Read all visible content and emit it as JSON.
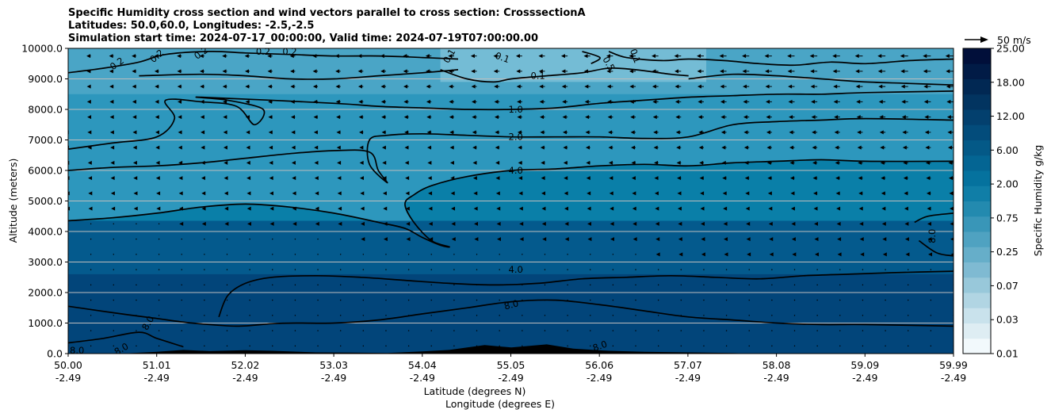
{
  "chart_data": {
    "type": "contour-cross-section",
    "title_lines": [
      "Specific Humidity cross section and wind vectors parallel to cross section: CrosssectionA",
      "Latitudes: 50.0,60.0, Longitudes: -2.5,-2.5",
      "Simulation start time: 2024-07-17_00:00:00, Valid time: 2024-07-19T07:00:00.00"
    ],
    "ylabel": "Altitude (meters)",
    "xlabel_lat": "Latitude (degrees N)",
    "xlabel_lon": "Longitude (degrees E)",
    "xlim": [
      50.0,
      59.99
    ],
    "ylim": [
      0,
      10000
    ],
    "grid": "horizontal",
    "y_ticks": [
      "0.0",
      "1000.0",
      "2000.0",
      "3000.0",
      "4000.0",
      "5000.0",
      "6000.0",
      "7000.0",
      "8000.0",
      "9000.0",
      "10000.0"
    ],
    "x_ticks_lat": [
      "50.00",
      "51.01",
      "52.02",
      "53.03",
      "54.04",
      "55.05",
      "56.06",
      "57.07",
      "58.08",
      "59.09",
      "59.99"
    ],
    "x_ticks_lon": [
      "-2.49",
      "-2.49",
      "-2.49",
      "-2.49",
      "-2.49",
      "-2.49",
      "-2.49",
      "-2.49",
      "-2.49",
      "-2.49",
      "-2.49"
    ],
    "colorbar": {
      "label": "Specific Humidity g/kg",
      "tick_labels": [
        "0.01",
        "0.03",
        "0.07",
        "0.25",
        "0.75",
        "2.00",
        "6.00",
        "12.00",
        "18.00",
        "25.00"
      ]
    },
    "quiver_key": "50 m/s",
    "contour_labels": [
      "0.2",
      "0.2",
      "0.2",
      "0.2",
      "0.2",
      "0.1",
      "0.1",
      "0.1",
      "0.1",
      "0.5",
      "1.0",
      "2.0",
      "4.0",
      "4.0",
      "8.0",
      "8.0",
      "8.0",
      "8.0",
      "8.0",
      "8.0"
    ],
    "contour_levels": [
      0.1,
      0.2,
      0.5,
      1.0,
      2.0,
      4.0,
      8.0
    ],
    "contours": [
      {
        "level": 8.0,
        "points": [
          [
            50.0,
            1550
          ],
          [
            50.6,
            1300
          ],
          [
            51.0,
            1150
          ],
          [
            51.4,
            1000
          ],
          [
            51.9,
            900
          ],
          [
            52.3,
            980
          ],
          [
            52.6,
            1000
          ],
          [
            53.0,
            1000
          ],
          [
            53.5,
            1100
          ],
          [
            54.0,
            1300
          ],
          [
            54.5,
            1500
          ],
          [
            55.0,
            1700
          ],
          [
            55.5,
            1750
          ],
          [
            56.0,
            1600
          ],
          [
            56.5,
            1400
          ],
          [
            57.0,
            1200
          ],
          [
            57.5,
            1100
          ],
          [
            58.0,
            1000
          ],
          [
            58.5,
            950
          ],
          [
            59.0,
            950
          ],
          [
            59.99,
            900
          ]
        ]
      },
      {
        "level": 8.0,
        "points": [
          [
            50.0,
            350
          ],
          [
            50.4,
            500
          ],
          [
            50.8,
            700
          ],
          [
            51.0,
            500
          ],
          [
            51.3,
            220
          ]
        ]
      },
      {
        "level": 4.0,
        "points": [
          [
            51.7,
            1200
          ],
          [
            51.8,
            1900
          ],
          [
            52.0,
            2300
          ],
          [
            52.3,
            2500
          ],
          [
            52.8,
            2550
          ],
          [
            53.3,
            2500
          ],
          [
            53.8,
            2400
          ],
          [
            54.3,
            2300
          ],
          [
            54.8,
            2250
          ],
          [
            55.3,
            2300
          ],
          [
            55.8,
            2450
          ],
          [
            56.3,
            2500
          ],
          [
            56.8,
            2550
          ],
          [
            57.3,
            2500
          ],
          [
            57.8,
            2450
          ],
          [
            58.3,
            2550
          ],
          [
            58.8,
            2600
          ],
          [
            59.3,
            2650
          ],
          [
            59.99,
            2700
          ]
        ]
      },
      {
        "level": 4.0,
        "points": [
          [
            59.55,
            4300
          ],
          [
            59.7,
            4500
          ],
          [
            59.99,
            4600
          ]
        ]
      },
      {
        "level": 4.0,
        "points": [
          [
            59.6,
            3700
          ],
          [
            59.8,
            3300
          ],
          [
            59.99,
            3200
          ]
        ]
      },
      {
        "level": 2.0,
        "points": [
          [
            50.0,
            4350
          ],
          [
            50.5,
            4450
          ],
          [
            51.0,
            4600
          ],
          [
            51.5,
            4800
          ],
          [
            52.0,
            4900
          ],
          [
            52.5,
            4800
          ],
          [
            53.0,
            4600
          ],
          [
            53.5,
            4300
          ],
          [
            53.8,
            4100
          ],
          [
            54.0,
            3800
          ],
          [
            54.2,
            3550
          ],
          [
            54.3,
            3500
          ],
          [
            54.1,
            3700
          ],
          [
            53.9,
            4300
          ],
          [
            53.8,
            4900
          ],
          [
            53.9,
            5200
          ],
          [
            54.1,
            5500
          ],
          [
            54.5,
            5800
          ],
          [
            55.0,
            6000
          ],
          [
            55.5,
            6050
          ],
          [
            56.0,
            6150
          ],
          [
            56.5,
            6200
          ],
          [
            57.0,
            6150
          ],
          [
            57.5,
            6250
          ],
          [
            58.0,
            6300
          ],
          [
            58.5,
            6350
          ],
          [
            59.0,
            6300
          ],
          [
            59.99,
            6300
          ]
        ]
      },
      {
        "level": 1.0,
        "points": [
          [
            50.0,
            6000
          ],
          [
            50.5,
            6100
          ],
          [
            51.0,
            6150
          ],
          [
            51.5,
            6250
          ],
          [
            52.0,
            6400
          ],
          [
            52.5,
            6550
          ],
          [
            53.0,
            6650
          ],
          [
            53.4,
            6600
          ],
          [
            53.5,
            6000
          ],
          [
            53.6,
            5600
          ],
          [
            53.4,
            6200
          ],
          [
            53.4,
            7000
          ],
          [
            53.6,
            7150
          ],
          [
            54.0,
            7200
          ],
          [
            54.5,
            7150
          ],
          [
            55.0,
            7100
          ],
          [
            55.5,
            7100
          ],
          [
            56.0,
            7100
          ],
          [
            56.5,
            7050
          ],
          [
            57.0,
            7100
          ],
          [
            57.5,
            7500
          ],
          [
            58.0,
            7600
          ],
          [
            58.5,
            7650
          ],
          [
            59.0,
            7700
          ],
          [
            59.99,
            7650
          ]
        ]
      },
      {
        "level": 0.5,
        "points": [
          [
            50.0,
            6700
          ],
          [
            50.5,
            6900
          ],
          [
            51.0,
            7100
          ],
          [
            51.2,
            7700
          ],
          [
            51.1,
            8300
          ],
          [
            51.5,
            8250
          ],
          [
            51.9,
            8100
          ],
          [
            52.1,
            7500
          ],
          [
            52.2,
            8000
          ],
          [
            51.8,
            8300
          ],
          [
            51.5,
            8400
          ],
          [
            53.0,
            8200
          ],
          [
            53.5,
            8100
          ],
          [
            54.0,
            8050
          ],
          [
            54.5,
            8000
          ],
          [
            55.0,
            8000
          ],
          [
            55.5,
            8050
          ],
          [
            56.0,
            8200
          ],
          [
            56.5,
            8300
          ],
          [
            57.0,
            8400
          ],
          [
            57.5,
            8450
          ],
          [
            58.0,
            8500
          ],
          [
            58.5,
            8500
          ],
          [
            59.0,
            8550
          ],
          [
            59.99,
            8600
          ]
        ]
      },
      {
        "level": 0.2,
        "points": [
          [
            50.0,
            9200
          ],
          [
            50.4,
            9350
          ],
          [
            50.8,
            9550
          ],
          [
            51.1,
            9800
          ],
          [
            51.6,
            9900
          ],
          [
            52.0,
            9850
          ],
          [
            52.5,
            9800
          ],
          [
            53.0,
            9750
          ],
          [
            53.5,
            9750
          ],
          [
            54.0,
            9700
          ],
          [
            54.4,
            9650
          ]
        ]
      },
      {
        "level": 0.2,
        "points": [
          [
            50.8,
            9100
          ],
          [
            51.5,
            9150
          ],
          [
            52.0,
            9100
          ],
          [
            52.5,
            9000
          ],
          [
            53.0,
            9000
          ],
          [
            53.5,
            9100
          ],
          [
            54.0,
            9200
          ],
          [
            54.4,
            9300
          ]
        ]
      },
      {
        "level": 0.1,
        "points": [
          [
            54.2,
            9300
          ],
          [
            54.5,
            9000
          ],
          [
            54.8,
            8900
          ],
          [
            55.0,
            9000
          ],
          [
            55.4,
            9100
          ],
          [
            55.8,
            9200
          ],
          [
            56.1,
            9350
          ],
          [
            56.4,
            9300
          ],
          [
            56.8,
            9150
          ],
          [
            57.0,
            9100
          ]
        ]
      },
      {
        "level": 0.1,
        "points": [
          [
            56.1,
            9900
          ],
          [
            56.3,
            9700
          ],
          [
            56.7,
            9600
          ],
          [
            57.0,
            9650
          ],
          [
            57.4,
            9600
          ],
          [
            57.8,
            9500
          ],
          [
            58.2,
            9450
          ],
          [
            58.6,
            9550
          ],
          [
            59.0,
            9500
          ],
          [
            59.5,
            9600
          ],
          [
            59.99,
            9650
          ]
        ]
      },
      {
        "level": 0.1,
        "points": [
          [
            57.0,
            9000
          ],
          [
            57.5,
            9150
          ],
          [
            58.0,
            9100
          ],
          [
            58.5,
            9000
          ],
          [
            59.0,
            8900
          ],
          [
            59.5,
            8850
          ],
          [
            59.99,
            8800
          ]
        ]
      },
      {
        "level": 0.1,
        "points": [
          [
            55.8,
            9900
          ],
          [
            56.0,
            9700
          ],
          [
            55.9,
            9500
          ]
        ]
      }
    ],
    "terrain": [
      [
        50.0,
        0
      ],
      [
        50.6,
        0
      ],
      [
        51.0,
        60
      ],
      [
        51.3,
        120
      ],
      [
        51.6,
        80
      ],
      [
        52.0,
        110
      ],
      [
        52.3,
        90
      ],
      [
        52.8,
        40
      ],
      [
        53.2,
        30
      ],
      [
        53.6,
        20
      ],
      [
        54.0,
        70
      ],
      [
        54.3,
        120
      ],
      [
        54.7,
        280
      ],
      [
        55.0,
        200
      ],
      [
        55.4,
        300
      ],
      [
        55.7,
        160
      ],
      [
        56.1,
        90
      ],
      [
        56.5,
        60
      ],
      [
        57.0,
        40
      ],
      [
        57.5,
        20
      ],
      [
        57.7,
        0
      ],
      [
        59.99,
        0
      ]
    ],
    "wind_vectors": "horizontal arrows parallel to cross section, predominantly pointing south (left); larger at upper levels and to the north"
  },
  "colors": {
    "very_moist": "#02457a",
    "moist": "#045a8d",
    "mid": "#0a7fa8",
    "dry": "#2d97bd",
    "drier": "#4aa5c6",
    "driest": "#74bcd5",
    "contour": "#000000",
    "terrain": "#000000",
    "grid": "#bdbdbd"
  }
}
